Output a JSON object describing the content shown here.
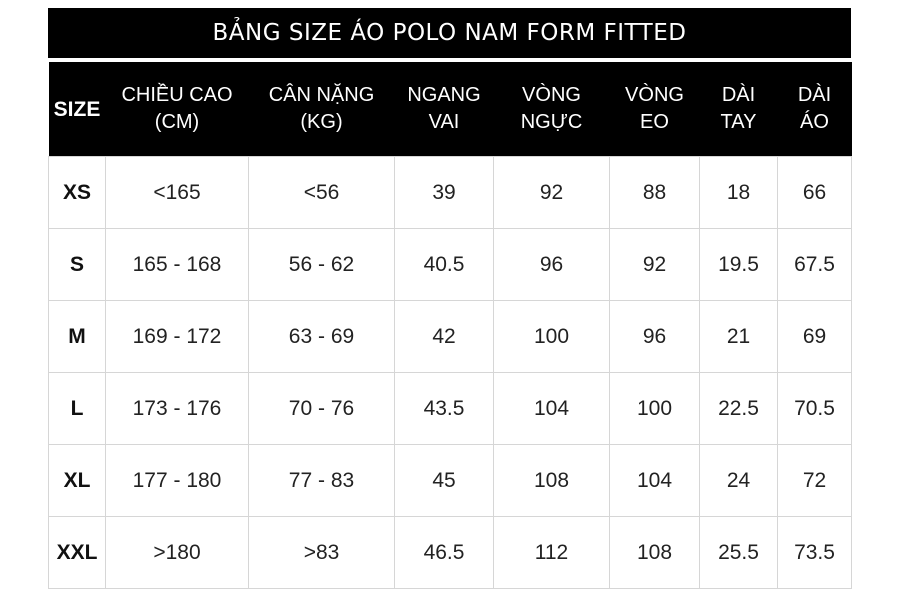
{
  "title": "BẢNG SIZE ÁO POLO NAM FORM FITTED",
  "headers": [
    {
      "line1": "SIZE",
      "line2": ""
    },
    {
      "line1": "CHIỀU CAO",
      "line2": "(CM)"
    },
    {
      "line1": "CÂN NẶNG",
      "line2": "(KG)"
    },
    {
      "line1": "NGANG",
      "line2": "VAI"
    },
    {
      "line1": "VÒNG",
      "line2": "NGỰC"
    },
    {
      "line1": "VÒNG",
      "line2": "EO"
    },
    {
      "line1": "DÀI",
      "line2": "TAY"
    },
    {
      "line1": "DÀI",
      "line2": "ÁO"
    }
  ],
  "rows": [
    [
      "XS",
      "<165",
      "<56",
      "39",
      "92",
      "88",
      "18",
      "66"
    ],
    [
      "S",
      "165 - 168",
      "56 - 62",
      "40.5",
      "96",
      "92",
      "19.5",
      "67.5"
    ],
    [
      "M",
      "169 - 172",
      "63 - 69",
      "42",
      "100",
      "96",
      "21",
      "69"
    ],
    [
      "L",
      "173 - 176",
      "70 - 76",
      "43.5",
      "104",
      "100",
      "22.5",
      "70.5"
    ],
    [
      "XL",
      "177 - 180",
      "77 - 83",
      "45",
      "108",
      "104",
      "24",
      "72"
    ],
    [
      "XXL",
      ">180",
      ">83",
      "46.5",
      "112",
      "108",
      "25.5",
      "73.5"
    ]
  ]
}
